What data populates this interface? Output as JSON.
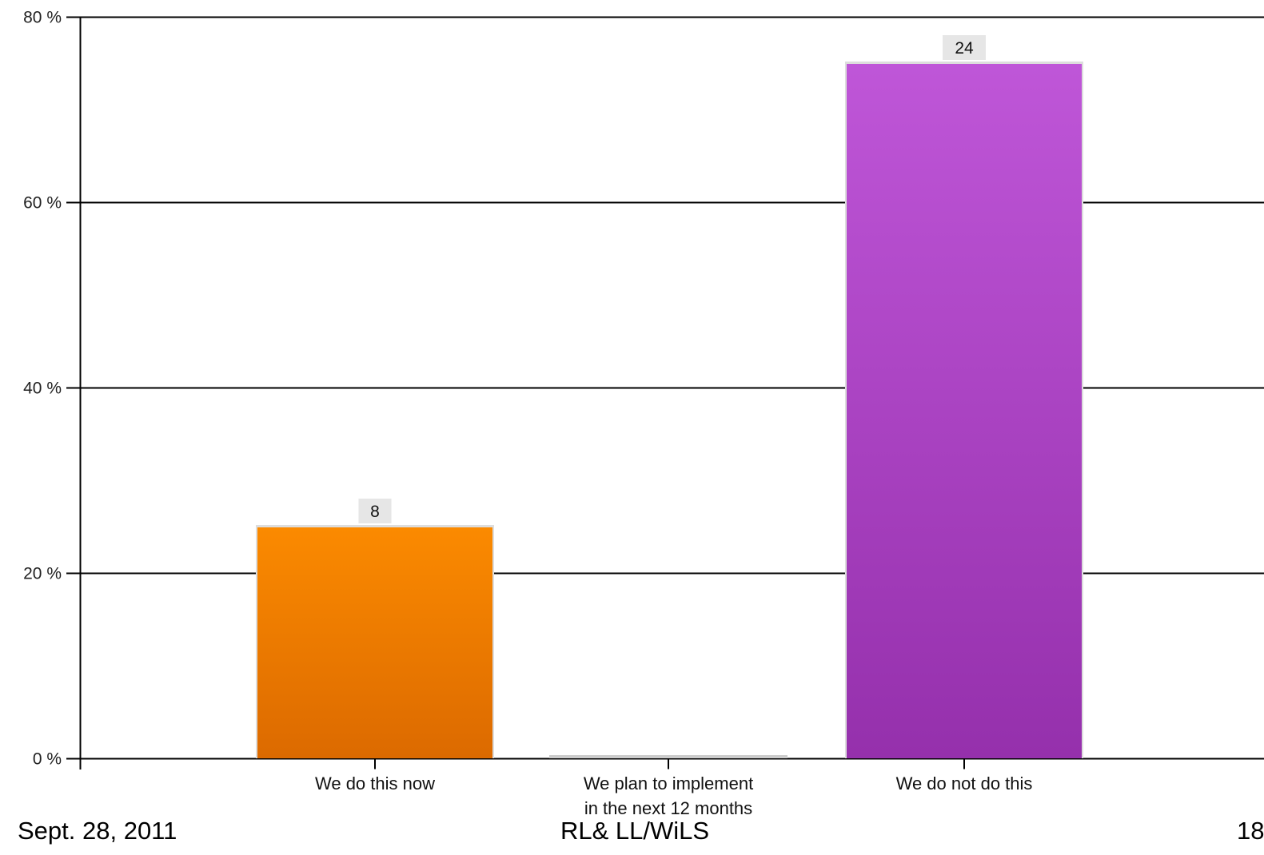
{
  "chart_data": {
    "type": "bar",
    "categories": [
      "We do this now",
      "We plan to implement in the next 12 months",
      "We do not do this"
    ],
    "category_lines": [
      [
        "We do this now"
      ],
      [
        "We plan to implement",
        "in the next 12 months"
      ],
      [
        "We do not do this"
      ]
    ],
    "values": [
      25,
      0,
      75
    ],
    "data_labels": [
      "8",
      "",
      "24"
    ],
    "ylim": [
      0,
      80
    ],
    "yticks": [
      0,
      20,
      40,
      60,
      80
    ],
    "ytick_labels": [
      "0 %",
      "20 %",
      "40 %",
      "60 %",
      "80 %"
    ],
    "grid": true,
    "colors": {
      "bar_top": [
        "#fb8a00",
        "#cccccc",
        "#bf56d8"
      ],
      "bar_bottom": [
        "#dc6a00",
        "#cccccc",
        "#9530ac"
      ],
      "bar_outline": "#dddddd",
      "gridline": "#000000",
      "label_bg": "#e6e6e6"
    }
  },
  "footer": {
    "date": "Sept. 28, 2011",
    "org": "RL& LL/WiLS",
    "page": "18"
  }
}
